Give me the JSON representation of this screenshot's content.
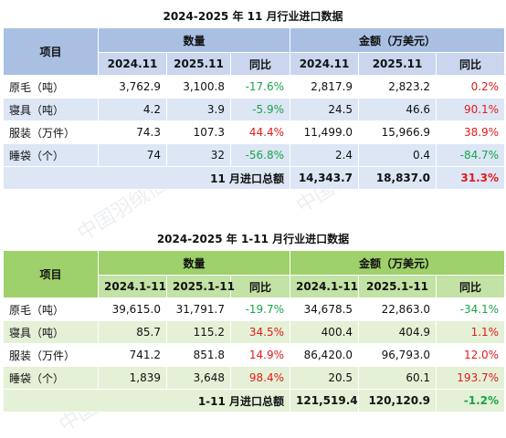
{
  "table1": {
    "title": "2024-2025 年 11 月行业进口数据",
    "header": {
      "item": "项目",
      "qty": "数量",
      "amt": "金额（万美元）",
      "q_prev": "2024.11",
      "q_curr": "2025.11",
      "q_yoy": "同比",
      "a_prev": "2024.11",
      "a_curr": "2025.11",
      "a_yoy": "同比"
    },
    "rows": [
      {
        "name": "原毛（吨）",
        "q_prev": "3,762.9",
        "q_curr": "3,100.8",
        "q_yoy": "-17.6%",
        "a_prev": "2,817.9",
        "a_curr": "2,823.2",
        "a_yoy": "0.2%"
      },
      {
        "name": "寝具（吨）",
        "q_prev": "4.2",
        "q_curr": "3.9",
        "q_yoy": "-5.9%",
        "a_prev": "24.5",
        "a_curr": "46.6",
        "a_yoy": "90.1%"
      },
      {
        "name": "服装（万件）",
        "q_prev": "74.3",
        "q_curr": "107.3",
        "q_yoy": "44.4%",
        "a_prev": "11,499.0",
        "a_curr": "15,966.9",
        "a_yoy": "38.9%"
      },
      {
        "name": "睡袋（个）",
        "q_prev": "74",
        "q_curr": "32",
        "q_yoy": "-56.8%",
        "a_prev": "2.4",
        "a_curr": "0.4",
        "a_yoy": "-84.7%"
      }
    ],
    "total": {
      "label": "11 月进口总额",
      "a_prev": "14,343.7",
      "a_curr": "18,837.0",
      "a_yoy": "31.3%"
    }
  },
  "table2": {
    "title": "2024-2025 年 1-11 月行业进口数据",
    "header": {
      "item": "项目",
      "qty": "数量",
      "amt": "金额（万美元）",
      "q_prev": "2024.1-11",
      "q_curr": "2025.1-11",
      "q_yoy": "同比",
      "a_prev": "2024.1-11",
      "a_curr": "2025.1-11",
      "a_yoy": "同比"
    },
    "rows": [
      {
        "name": "原毛（吨）",
        "q_prev": "39,615.0",
        "q_curr": "31,791.7",
        "q_yoy": "-19.7%",
        "a_prev": "34,678.5",
        "a_curr": "22,863.0",
        "a_yoy": "-34.1%"
      },
      {
        "name": "寝具（吨）",
        "q_prev": "85.7",
        "q_curr": "115.2",
        "q_yoy": "34.5%",
        "a_prev": "400.4",
        "a_curr": "404.9",
        "a_yoy": "1.1%"
      },
      {
        "name": "服装（万件）",
        "q_prev": "741.2",
        "q_curr": "851.8",
        "q_yoy": "14.9%",
        "a_prev": "86,420.0",
        "a_curr": "96,793.0",
        "a_yoy": "12.0%"
      },
      {
        "name": "睡袋（个）",
        "q_prev": "1,839",
        "q_curr": "3,648",
        "q_yoy": "98.4%",
        "a_prev": "20.5",
        "a_curr": "60.1",
        "a_yoy": "193.7%"
      }
    ],
    "total": {
      "label": "1-11 月进口总额",
      "a_prev": "121,519.4",
      "a_curr": "120,120.9",
      "a_yoy": "-1.2%"
    }
  },
  "watermark": {
    "text": "中国羽绒信息网 www.cfd.com.cn"
  },
  "colors": {
    "positive": "#e21b1b",
    "negative": "#1aa34a",
    "t1_header": "#a9c0e3",
    "t2_header": "#9ed06b"
  }
}
